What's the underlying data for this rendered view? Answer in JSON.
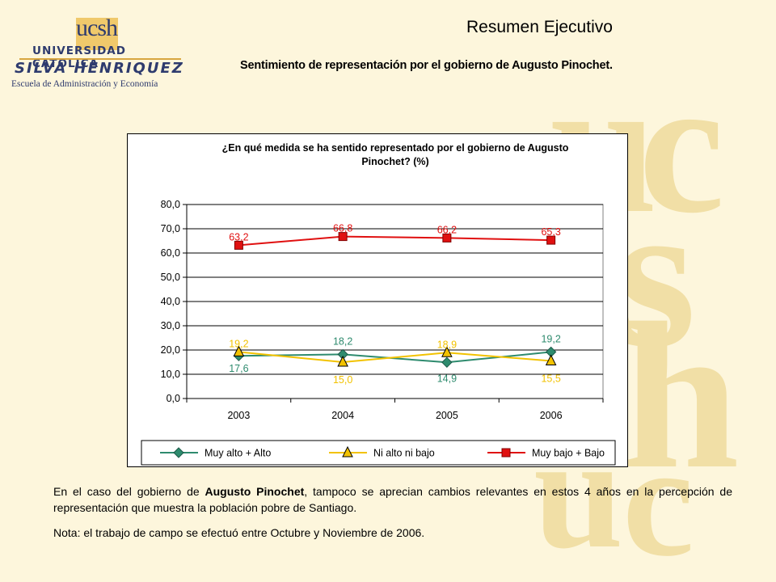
{
  "logo": {
    "brand": "ucsh",
    "university": "UNIVERSIDAD CATOLICA",
    "name": "SILVA HENRIQUEZ",
    "school": "Escuela de Administración y Economía"
  },
  "header": {
    "title": "Resumen Ejecutivo",
    "subtitle": "Sentimiento de representación por el gobierno de Augusto Pinochet."
  },
  "chart_data": {
    "type": "line",
    "title_line1": "¿En qué medida se ha sentido representado por el gobierno de Augusto",
    "title_line2": "Pinochet? (%)",
    "categories": [
      "2003",
      "2004",
      "2005",
      "2006"
    ],
    "ylim": [
      0,
      80
    ],
    "yticks": [
      "0,0",
      "10,0",
      "20,0",
      "30,0",
      "40,0",
      "50,0",
      "60,0",
      "70,0",
      "80,0"
    ],
    "grid": true,
    "legend_position": "bottom",
    "series": [
      {
        "name": "Muy alto + Alto",
        "values": [
          17.6,
          18.2,
          14.9,
          19.2
        ],
        "labels": [
          "17,6",
          "18,2",
          "14,9",
          "19,2"
        ],
        "color": "#2e8b6e",
        "marker": "diamond"
      },
      {
        "name": "Ni alto ni bajo",
        "values": [
          19.2,
          15.0,
          18.9,
          15.5
        ],
        "labels": [
          "19,2",
          "15,0",
          "18,9",
          "15,5"
        ],
        "color": "#f2c200",
        "marker": "triangle"
      },
      {
        "name": "Muy bajo + Bajo",
        "values": [
          63.2,
          66.8,
          66.2,
          65.3
        ],
        "labels": [
          "63,2",
          "66,8",
          "66,2",
          "65,3"
        ],
        "color": "#e01010",
        "marker": "square"
      }
    ]
  },
  "text": {
    "p1_before": "En el caso del gobierno de ",
    "p1_bold": "Augusto Pinochet",
    "p1_after": ", tampoco se aprecian cambios relevantes en estos 4 años en la percepción de representación que muestra la población pobre de Santiago.",
    "note": "Nota: el trabajo de campo se efectuó entre Octubre y Noviembre de 2006."
  }
}
